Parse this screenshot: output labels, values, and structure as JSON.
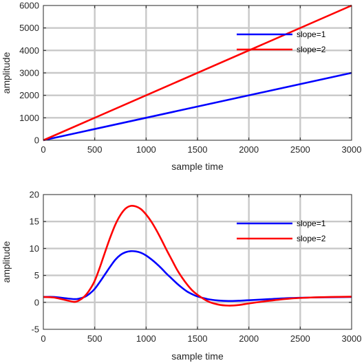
{
  "chart_data": [
    {
      "type": "line",
      "xlabel": "sample time",
      "ylabel": "amplitude",
      "xlim": [
        0,
        3000
      ],
      "ylim": [
        0,
        6000
      ],
      "xticks": [
        0,
        500,
        1000,
        1500,
        2000,
        2500,
        3000
      ],
      "yticks": [
        0,
        1000,
        2000,
        3000,
        4000,
        5000,
        6000
      ],
      "grid": true,
      "legend": "top-right",
      "series": [
        {
          "name": "slope=1",
          "color": "#0000ff",
          "x": [
            0,
            3000
          ],
          "y": [
            0,
            3000
          ]
        },
        {
          "name": "slope=2",
          "color": "#ff0000",
          "x": [
            0,
            3000
          ],
          "y": [
            0,
            6000
          ]
        }
      ]
    },
    {
      "type": "line",
      "xlabel": "sample time",
      "ylabel": "amplitude",
      "xlim": [
        0,
        3000
      ],
      "ylim": [
        -5,
        20
      ],
      "xticks": [
        0,
        500,
        1000,
        1500,
        2000,
        2500,
        3000
      ],
      "yticks": [
        -5,
        0,
        5,
        10,
        15,
        20
      ],
      "grid": true,
      "legend": "top-right",
      "series": [
        {
          "name": "slope=1",
          "color": "#0000ff",
          "x": [
            0,
            100,
            200,
            300,
            350,
            400,
            450,
            500,
            550,
            600,
            650,
            700,
            750,
            800,
            850,
            900,
            950,
            1000,
            1050,
            1100,
            1150,
            1200,
            1250,
            1300,
            1350,
            1400,
            1450,
            1500,
            1600,
            1700,
            1800,
            1900,
            2000,
            2200,
            2400,
            2600,
            2800,
            3000
          ],
          "y": [
            1.0,
            1.0,
            0.8,
            0.6,
            0.7,
            1.0,
            1.6,
            2.5,
            3.8,
            5.2,
            6.6,
            7.9,
            8.8,
            9.3,
            9.5,
            9.45,
            9.2,
            8.7,
            8.0,
            7.2,
            6.3,
            5.3,
            4.4,
            3.5,
            2.7,
            2.0,
            1.5,
            1.1,
            0.6,
            0.35,
            0.25,
            0.3,
            0.4,
            0.6,
            0.8,
            0.9,
            0.95,
            1.0
          ]
        },
        {
          "name": "slope=2",
          "color": "#ff0000",
          "x": [
            0,
            100,
            200,
            300,
            350,
            400,
            450,
            500,
            550,
            600,
            650,
            700,
            750,
            800,
            850,
            900,
            950,
            1000,
            1050,
            1100,
            1150,
            1200,
            1250,
            1300,
            1350,
            1400,
            1450,
            1500,
            1600,
            1700,
            1800,
            1900,
            2000,
            2200,
            2400,
            2600,
            2800,
            3000
          ],
          "y": [
            1.0,
            0.9,
            0.5,
            0.1,
            0.4,
            1.1,
            2.3,
            4.0,
            6.5,
            9.3,
            12.0,
            14.4,
            16.2,
            17.4,
            17.9,
            17.8,
            17.3,
            16.3,
            15.0,
            13.4,
            11.6,
            9.7,
            7.9,
            6.1,
            4.6,
            3.3,
            2.2,
            1.4,
            0.2,
            -0.4,
            -0.6,
            -0.5,
            -0.2,
            0.3,
            0.7,
            0.9,
            1.0,
            1.05
          ]
        }
      ]
    }
  ]
}
